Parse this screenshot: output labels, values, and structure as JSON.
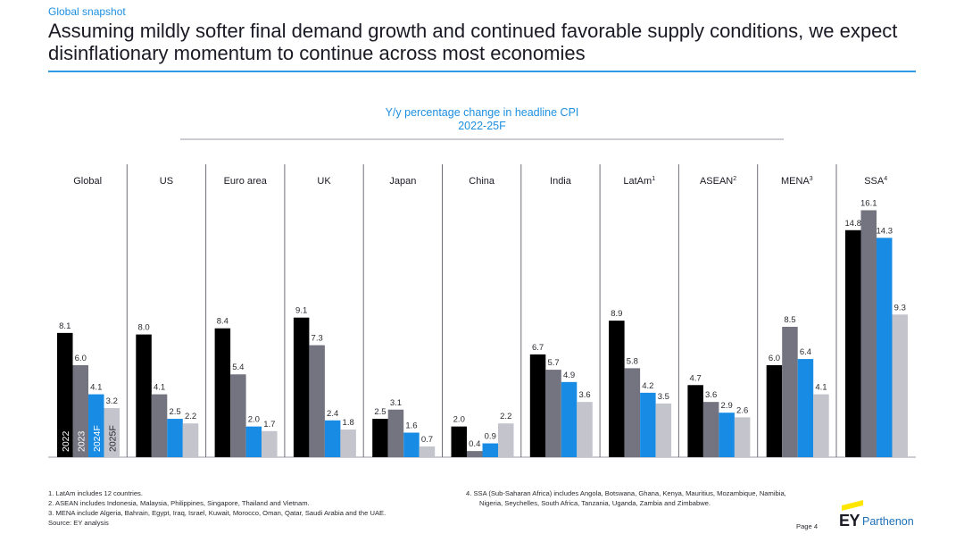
{
  "header": {
    "section": "Global snapshot",
    "headline": "Assuming mildly softer final demand growth and continued favorable supply conditions, we expect disinflationary momentum to continue across most economies"
  },
  "chart_data": {
    "type": "bar",
    "title": "Y/y percentage change in headline CPI",
    "subtitle": "2022-25F",
    "categories": [
      "Global",
      "US",
      "Euro area",
      "UK",
      "Japan",
      "China",
      "India",
      "LatAm",
      "ASEAN",
      "MENA",
      "SSA"
    ],
    "category_superscripts": [
      "",
      "",
      "",
      "",
      "",
      "",
      "",
      "1",
      "2",
      "3",
      "4"
    ],
    "series": [
      {
        "name": "2022",
        "color": "#000000",
        "values": [
          8.1,
          8.0,
          8.4,
          9.1,
          2.5,
          2.0,
          6.7,
          8.9,
          4.7,
          6.0,
          14.8
        ]
      },
      {
        "name": "2023",
        "color": "#747480",
        "values": [
          6.0,
          4.1,
          5.4,
          7.3,
          3.1,
          0.4,
          5.7,
          5.8,
          3.6,
          8.5,
          16.1
        ]
      },
      {
        "name": "2024F",
        "color": "#188ce5",
        "values": [
          4.1,
          2.5,
          2.0,
          2.4,
          1.6,
          0.9,
          4.9,
          4.2,
          2.9,
          6.4,
          14.3
        ]
      },
      {
        "name": "2025F",
        "color": "#c4c4cd",
        "values": [
          3.2,
          2.2,
          1.7,
          1.8,
          0.7,
          2.2,
          3.6,
          3.5,
          2.6,
          4.1,
          9.3
        ]
      }
    ],
    "ylim": [
      0,
      17
    ],
    "legend": "inside-first-group",
    "grid": false
  },
  "footnotes": {
    "left": [
      "1.  LatAm includes 12 countries.",
      "2.  ASEAN includes Indonesia, Malaysia, Philippines, Singapore, Thailand and Vietnam.",
      "3.  MENA include Algeria, Bahrain, Egypt, Iraq, Israel, Kuwait, Morocco, Oman, Qatar, Saudi Arabia and the UAE.",
      "Source: EY analysis"
    ],
    "right_line1": "4.  SSA (Sub-Saharan Africa) includes Angola, Botswana, Ghana, Kenya, Mauritius, Mozambique, Namibia,",
    "right_line2": "Nigeria, Seychelles, South Africa, Tanzania, Uganda, Zambia and Zimbabwe."
  },
  "footer": {
    "page": "Page 4",
    "logo_ey": "EY",
    "logo_parthenon": "Parthenon"
  }
}
